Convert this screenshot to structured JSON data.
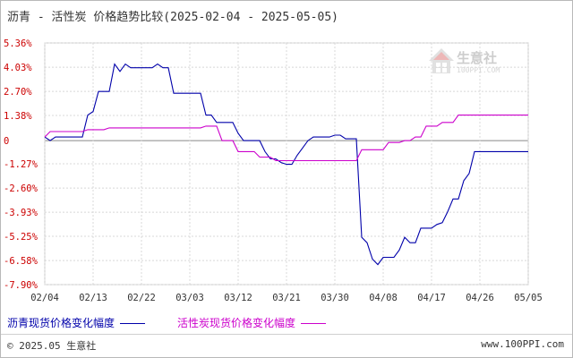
{
  "title": "沥青 - 活性炭 价格趋势比较(2025-02-04 - 2025-05-05)",
  "watermark": {
    "text": "生意社",
    "sub": "100PPI.COM"
  },
  "footer": {
    "left": "© 2025.05 生意社",
    "right": "www.100PPI.com"
  },
  "legend": [
    {
      "label": "沥青现货价格变化幅度",
      "color": "#0000aa"
    },
    {
      "label": "活性炭现货价格变化幅度",
      "color": "#cc00cc"
    }
  ],
  "chart_data": {
    "type": "line",
    "title": "沥青 - 活性炭 价格趋势比较(2025-02-04 - 2025-05-05)",
    "x_tick_labels": [
      "02/04",
      "02/13",
      "02/22",
      "03/03",
      "03/12",
      "03/21",
      "03/30",
      "04/08",
      "04/17",
      "04/26",
      "05/05"
    ],
    "y_tick_labels": [
      "5.36%",
      "4.03%",
      "2.70%",
      "1.38%",
      "0",
      "-1.27%",
      "-2.60%",
      "-3.93%",
      "-5.25%",
      "-6.58%",
      "-7.90%"
    ],
    "y_ticks": [
      5.36,
      4.03,
      2.7,
      1.38,
      0,
      -1.27,
      -2.6,
      -3.93,
      -5.25,
      -6.58,
      -7.9
    ],
    "ylim": [
      -7.9,
      5.36
    ],
    "xlim": [
      0,
      90
    ],
    "grid": true,
    "series": [
      {
        "name": "沥青现货价格变化幅度",
        "color": "#0000aa",
        "x": [
          0,
          1,
          2,
          3,
          4,
          5,
          6,
          7,
          8,
          9,
          10,
          11,
          12,
          13,
          14,
          15,
          16,
          17,
          18,
          19,
          20,
          21,
          22,
          23,
          24,
          25,
          26,
          27,
          28,
          29,
          30,
          31,
          32,
          33,
          34,
          35,
          36,
          37,
          38,
          39,
          40,
          41,
          42,
          43,
          44,
          45,
          46,
          47,
          48,
          49,
          50,
          51,
          52,
          53,
          54,
          55,
          56,
          57,
          58,
          59,
          60,
          61,
          62,
          63,
          64,
          65,
          66,
          67,
          68,
          69,
          70,
          71,
          72,
          73,
          74,
          75,
          76,
          77,
          78,
          79,
          80,
          81,
          82,
          83,
          84,
          85,
          86,
          87,
          88,
          89,
          90
        ],
        "y": [
          0.2,
          0,
          0.2,
          0.2,
          0.2,
          0.2,
          0.2,
          0.2,
          1.4,
          1.6,
          2.7,
          2.7,
          2.7,
          4.2,
          3.8,
          4.2,
          4.0,
          4.0,
          4.0,
          4.0,
          4.0,
          4.2,
          4.0,
          4.0,
          2.6,
          2.6,
          2.6,
          2.6,
          2.6,
          2.6,
          1.4,
          1.4,
          1.0,
          1.0,
          1.0,
          1.0,
          0.4,
          0.0,
          0.0,
          0.0,
          0.0,
          -0.6,
          -1.0,
          -1.0,
          -1.2,
          -1.3,
          -1.3,
          -0.8,
          -0.4,
          0,
          0.2,
          0.2,
          0.2,
          0.2,
          0.3,
          0.3,
          0.1,
          0.1,
          0.1,
          -5.3,
          -5.6,
          -6.5,
          -6.8,
          -6.4,
          -6.4,
          -6.4,
          -6.0,
          -5.3,
          -5.6,
          -5.6,
          -4.8,
          -4.8,
          -4.8,
          -4.6,
          -4.5,
          -3.9,
          -3.2,
          -3.2,
          -2.2,
          -1.8,
          -0.6,
          -0.6,
          -0.6,
          -0.6,
          -0.6,
          -0.6,
          -0.6,
          -0.6,
          -0.6,
          -0.6,
          -0.6
        ]
      },
      {
        "name": "活性炭现货价格变化幅度",
        "color": "#cc00cc",
        "x": [
          0,
          1,
          2,
          3,
          4,
          5,
          6,
          7,
          8,
          9,
          10,
          11,
          12,
          13,
          14,
          15,
          16,
          17,
          18,
          19,
          20,
          21,
          22,
          23,
          24,
          25,
          26,
          27,
          28,
          29,
          30,
          31,
          32,
          33,
          34,
          35,
          36,
          37,
          38,
          39,
          40,
          41,
          42,
          43,
          44,
          45,
          46,
          47,
          48,
          49,
          50,
          51,
          52,
          53,
          54,
          55,
          56,
          57,
          58,
          59,
          60,
          61,
          62,
          63,
          64,
          65,
          66,
          67,
          68,
          69,
          70,
          71,
          72,
          73,
          74,
          75,
          76,
          77,
          78,
          79,
          80,
          81,
          82,
          83,
          84,
          85,
          86,
          87,
          88,
          89,
          90
        ],
        "y": [
          0.2,
          0.5,
          0.5,
          0.5,
          0.5,
          0.5,
          0.5,
          0.5,
          0.6,
          0.6,
          0.6,
          0.6,
          0.7,
          0.7,
          0.7,
          0.7,
          0.7,
          0.7,
          0.7,
          0.7,
          0.7,
          0.7,
          0.7,
          0.7,
          0.7,
          0.7,
          0.7,
          0.7,
          0.7,
          0.7,
          0.8,
          0.8,
          0.8,
          0,
          0,
          0,
          -0.6,
          -0.6,
          -0.6,
          -0.6,
          -0.9,
          -0.9,
          -0.9,
          -1.1,
          -1.1,
          -1.1,
          -1.1,
          -1.1,
          -1.1,
          -1.1,
          -1.1,
          -1.1,
          -1.1,
          -1.1,
          -1.1,
          -1.1,
          -1.1,
          -1.1,
          -1.1,
          -0.5,
          -0.5,
          -0.5,
          -0.5,
          -0.5,
          -0.1,
          -0.1,
          -0.1,
          0,
          0,
          0.2,
          0.2,
          0.8,
          0.8,
          0.8,
          1.0,
          1.0,
          1.0,
          1.4,
          1.4,
          1.4,
          1.4,
          1.4,
          1.4,
          1.4,
          1.4,
          1.4,
          1.4,
          1.4,
          1.4,
          1.4,
          1.4
        ]
      }
    ]
  }
}
